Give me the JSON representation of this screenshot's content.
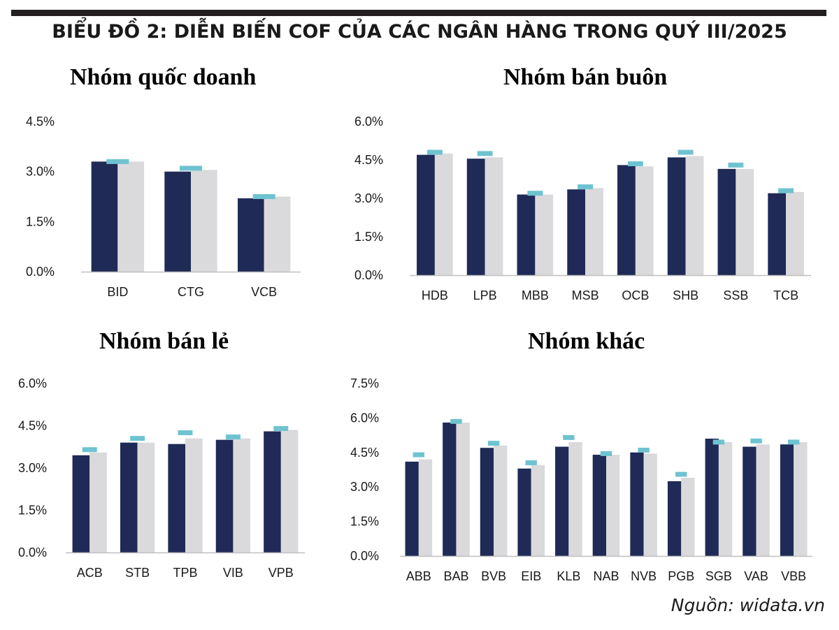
{
  "title": "BIỂU ĐỒ 2: DIỄN BIẾN COF CỦA CÁC NGÂN HÀNG TRONG QUÝ III/2025",
  "source": "Nguồn: widata.vn",
  "colors": {
    "series1": "#1f2a56",
    "series2": "#dadadd",
    "marker": "#6ec3d0",
    "axis": "#bfbfbf"
  },
  "chart_data": [
    {
      "type": "bar",
      "title": "Nhóm quốc doanh",
      "categories": [
        "BID",
        "CTG",
        "VCB"
      ],
      "series": [
        {
          "values": [
            3.3,
            3.0,
            2.2
          ]
        },
        {
          "values": [
            3.3,
            3.05,
            2.25
          ]
        }
      ],
      "markers": [
        3.3,
        3.1,
        2.25
      ],
      "ylim": [
        0,
        4.5
      ],
      "yticks": [
        "0.0%",
        "1.5%",
        "3.0%",
        "4.5%"
      ]
    },
    {
      "type": "bar",
      "title": "Nhóm bán buôn",
      "categories": [
        "HDB",
        "LPB",
        "MBB",
        "MSB",
        "OCB",
        "SHB",
        "SSB",
        "TCB"
      ],
      "series": [
        {
          "values": [
            4.7,
            4.55,
            3.15,
            3.35,
            4.3,
            4.6,
            4.15,
            3.2
          ]
        },
        {
          "values": [
            4.75,
            4.6,
            3.15,
            3.4,
            4.25,
            4.65,
            4.15,
            3.25
          ]
        }
      ],
      "markers": [
        4.8,
        4.75,
        3.2,
        3.45,
        4.35,
        4.8,
        4.3,
        3.3
      ],
      "ylim": [
        0,
        6.0
      ],
      "yticks": [
        "0.0%",
        "1.5%",
        "3.0%",
        "4.5%",
        "6.0%"
      ]
    },
    {
      "type": "bar",
      "title": "Nhóm bán lẻ",
      "categories": [
        "ACB",
        "STB",
        "TPB",
        "VIB",
        "VPB"
      ],
      "series": [
        {
          "values": [
            3.45,
            3.9,
            3.85,
            4.0,
            4.3
          ]
        },
        {
          "values": [
            3.55,
            3.9,
            4.05,
            4.05,
            4.35
          ]
        }
      ],
      "markers": [
        3.65,
        4.05,
        4.25,
        4.1,
        4.4
      ],
      "ylim": [
        0,
        6.0
      ],
      "yticks": [
        "0.0%",
        "1.5%",
        "3.0%",
        "4.5%",
        "6.0%"
      ]
    },
    {
      "type": "bar",
      "title": "Nhóm khác",
      "categories": [
        "ABB",
        "BAB",
        "BVB",
        "EIB",
        "KLB",
        "NAB",
        "NVB",
        "PGB",
        "SGB",
        "VAB",
        "VBB"
      ],
      "series": [
        {
          "values": [
            4.1,
            5.8,
            4.7,
            3.8,
            4.75,
            4.4,
            4.5,
            3.25,
            5.1,
            4.75,
            4.85
          ]
        },
        {
          "values": [
            4.2,
            5.8,
            4.8,
            3.95,
            4.95,
            4.4,
            4.45,
            3.4,
            4.95,
            4.85,
            4.95
          ]
        }
      ],
      "markers": [
        4.4,
        5.85,
        4.9,
        4.05,
        5.15,
        4.45,
        4.6,
        3.55,
        4.95,
        5.0,
        4.95
      ],
      "ylim": [
        0,
        7.5
      ],
      "yticks": [
        "0.0%",
        "1.5%",
        "3.0%",
        "4.5%",
        "6.0%",
        "7.5%"
      ]
    }
  ]
}
